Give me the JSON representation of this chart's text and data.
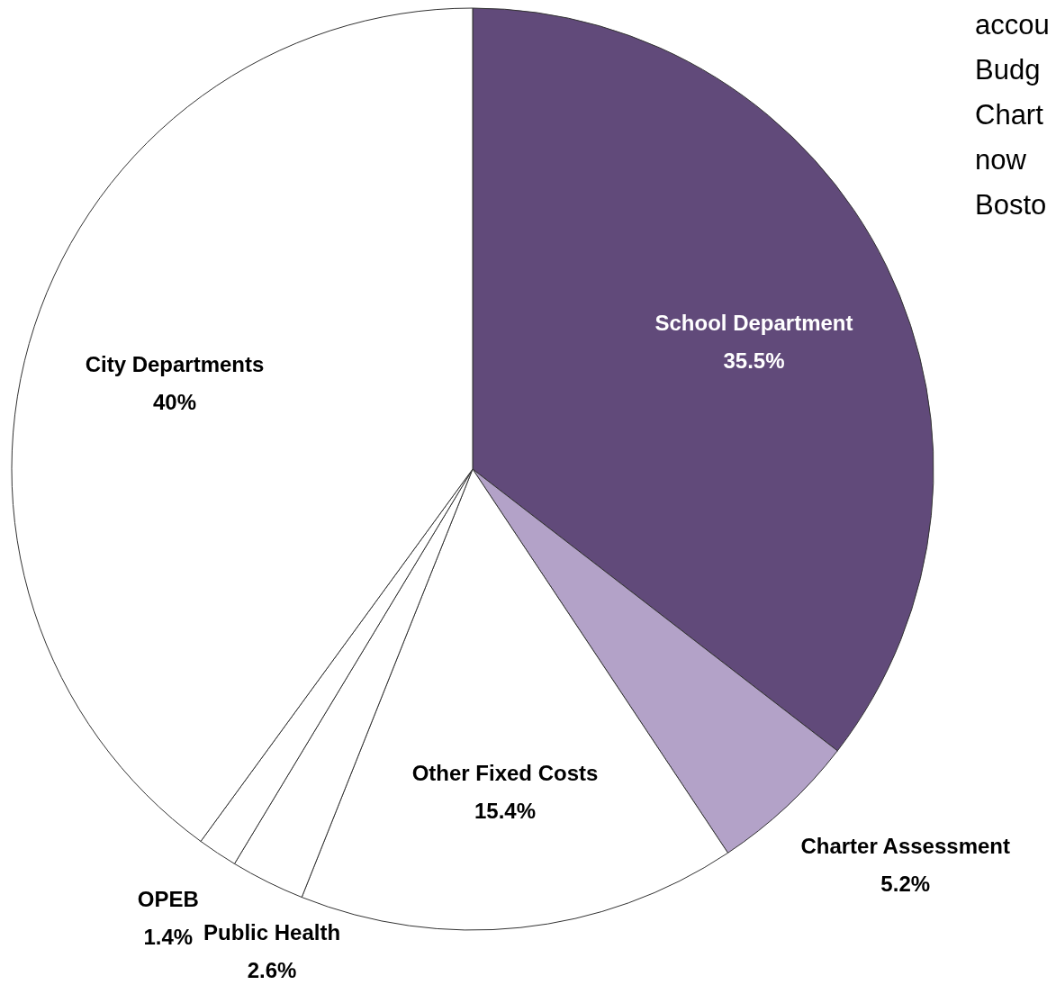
{
  "chart_data": {
    "type": "pie",
    "categories": [
      "School Department",
      "Charter Assessment",
      "Other Fixed Costs",
      "Public Health",
      "OPEB",
      "City Departments"
    ],
    "values": [
      35.5,
      5.2,
      15.4,
      2.6,
      1.4,
      40
    ],
    "colors": [
      "#614a7a",
      "#b3a2c8",
      "#ffffff",
      "#ffffff",
      "#ffffff",
      "#ffffff"
    ],
    "value_labels": [
      "35.5%",
      "5.2%",
      "15.4%",
      "2.6%",
      "1.4%",
      "40%"
    ],
    "annotations": [
      "accou",
      "Budg",
      "Chart",
      "now",
      "Bosto"
    ]
  }
}
